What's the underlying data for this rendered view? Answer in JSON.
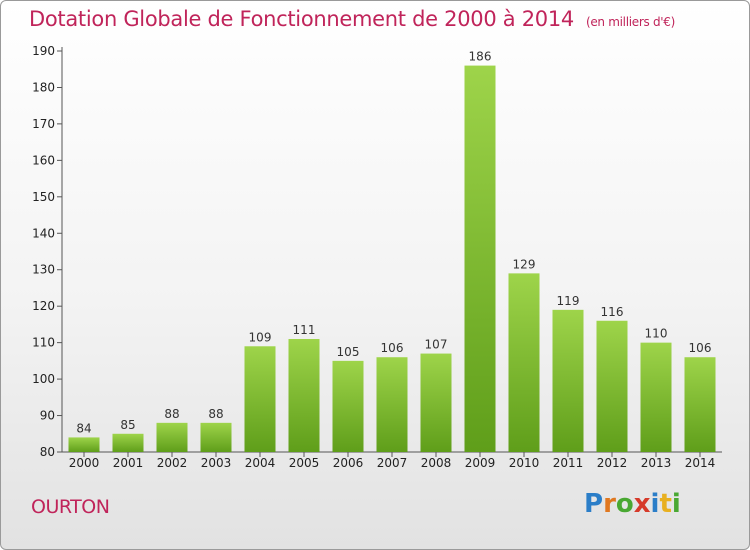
{
  "header": {
    "title": "Dotation Globale de Fonctionnement de 2000 à 2014",
    "subtitle": "(en milliers d'€)"
  },
  "footer": {
    "commune": "OURTON",
    "logo_text": "Proxiti",
    "logo_letters": [
      {
        "ch": "P",
        "color": "#2b7ec8"
      },
      {
        "ch": "r",
        "color": "#e07820"
      },
      {
        "ch": "o",
        "color": "#49a832"
      },
      {
        "ch": "x",
        "color": "#d63a2a"
      },
      {
        "ch": "i",
        "color": "#2b7ec8"
      },
      {
        "ch": "t",
        "color": "#e8b020"
      },
      {
        "ch": "i",
        "color": "#49a832"
      }
    ]
  },
  "colors": {
    "bar_top": "#9ed44a",
    "bar_bottom": "#5f9e1a",
    "title": "#c0245a"
  },
  "chart_data": {
    "type": "bar",
    "categories": [
      "2000",
      "2001",
      "2002",
      "2003",
      "2004",
      "2005",
      "2006",
      "2007",
      "2008",
      "2009",
      "2010",
      "2011",
      "2012",
      "2013",
      "2014"
    ],
    "values": [
      84,
      85,
      88,
      88,
      109,
      111,
      105,
      106,
      107,
      186,
      129,
      119,
      116,
      110,
      106
    ],
    "ylim": [
      80,
      190
    ],
    "yticks": [
      80,
      90,
      100,
      110,
      120,
      130,
      140,
      150,
      160,
      170,
      180,
      190
    ],
    "grid": false
  }
}
